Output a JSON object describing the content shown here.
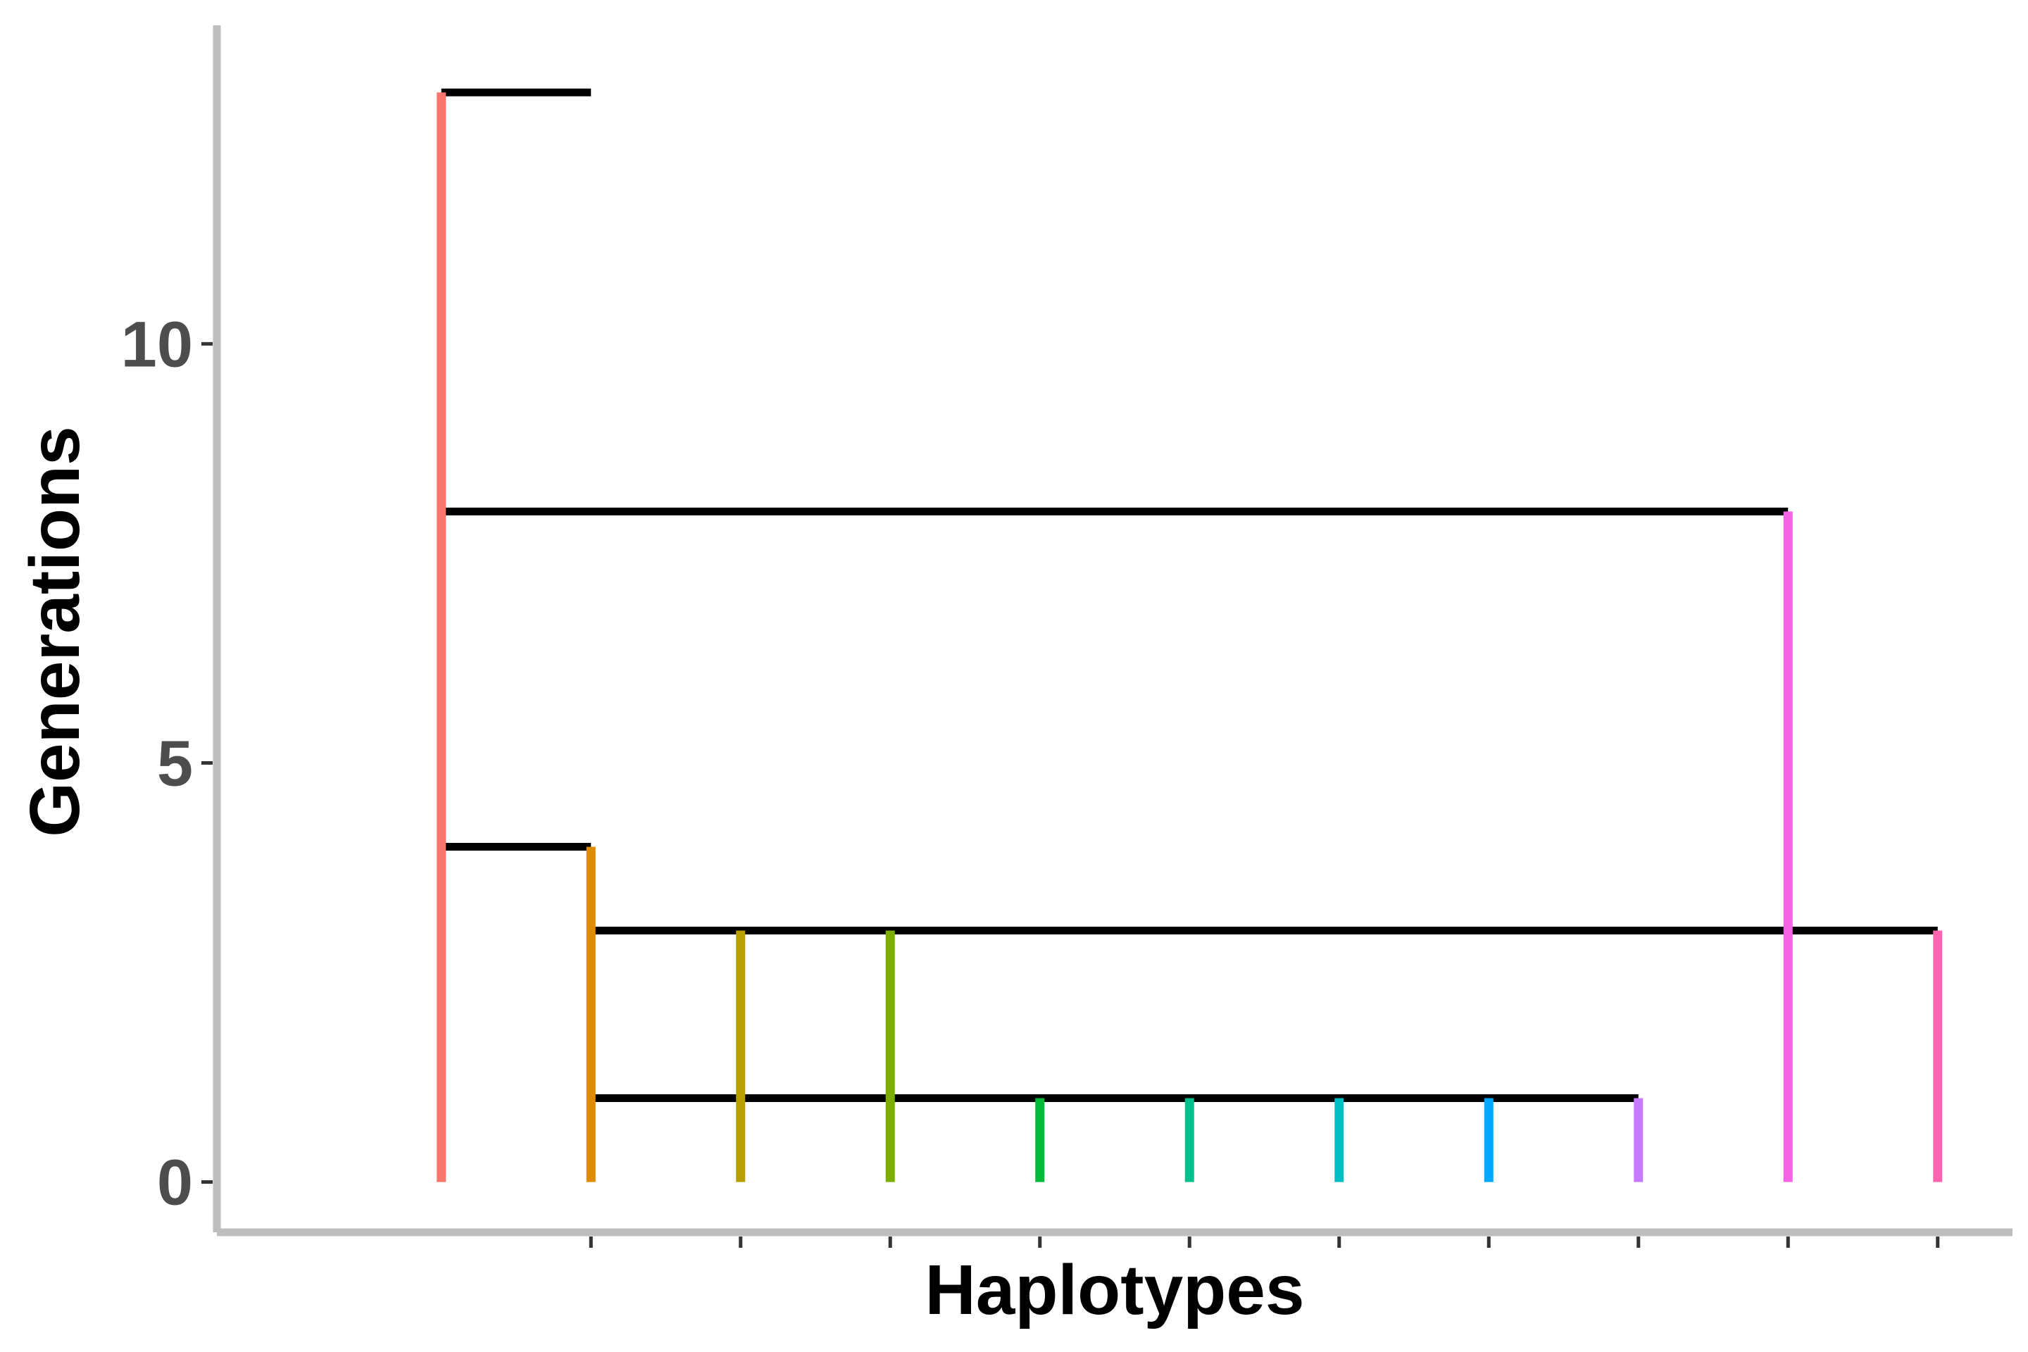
{
  "chart_data": {
    "type": "line",
    "title": "",
    "xlabel": "Haplotypes",
    "ylabel": "Generations",
    "ylim": [
      -0.6,
      13.8
    ],
    "yticks": [
      0,
      5,
      10
    ],
    "x_positions": [
      1,
      2,
      3,
      4,
      5,
      6,
      7,
      8,
      9,
      10,
      11
    ],
    "xlim": [
      -0.5,
      11.5
    ],
    "xticks_marks": [
      2,
      3,
      4,
      5,
      6,
      7,
      8,
      9,
      10,
      11
    ],
    "grid": false,
    "legend": "none",
    "series": [
      {
        "x": 1,
        "y_start": 0,
        "y_end": 13,
        "color": "#F8766D"
      },
      {
        "x": 2,
        "y_start": 0,
        "y_end": 4,
        "color": "#DE8C00"
      },
      {
        "x": 3,
        "y_start": 0,
        "y_end": 3,
        "color": "#B79F00"
      },
      {
        "x": 4,
        "y_start": 0,
        "y_end": 3,
        "color": "#7CAE00"
      },
      {
        "x": 5,
        "y_start": 0,
        "y_end": 1,
        "color": "#00BA38"
      },
      {
        "x": 6,
        "y_start": 0,
        "y_end": 1,
        "color": "#00C08B"
      },
      {
        "x": 7,
        "y_start": 0,
        "y_end": 1,
        "color": "#00BFC4"
      },
      {
        "x": 8,
        "y_start": 0,
        "y_end": 1,
        "color": "#00A9FF"
      },
      {
        "x": 9,
        "y_start": 0,
        "y_end": 1,
        "color": "#C77CFF"
      },
      {
        "x": 10,
        "y_start": 0,
        "y_end": 8,
        "color": "#F564E3"
      },
      {
        "x": 11,
        "y_start": 0,
        "y_end": 3,
        "color": "#FF64B0"
      }
    ],
    "connectors": [
      {
        "y": 13,
        "x_start": 1,
        "x_end": 2
      },
      {
        "y": 8,
        "x_start": 1,
        "x_end": 10
      },
      {
        "y": 4,
        "x_start": 1,
        "x_end": 2
      },
      {
        "y": 3,
        "x_start": 2,
        "x_end": 11
      },
      {
        "y": 1,
        "x_start": 2,
        "x_end": 9
      }
    ],
    "colors": {
      "axis": "#bebebe",
      "tick": "#333333",
      "connector": "#000000"
    }
  }
}
